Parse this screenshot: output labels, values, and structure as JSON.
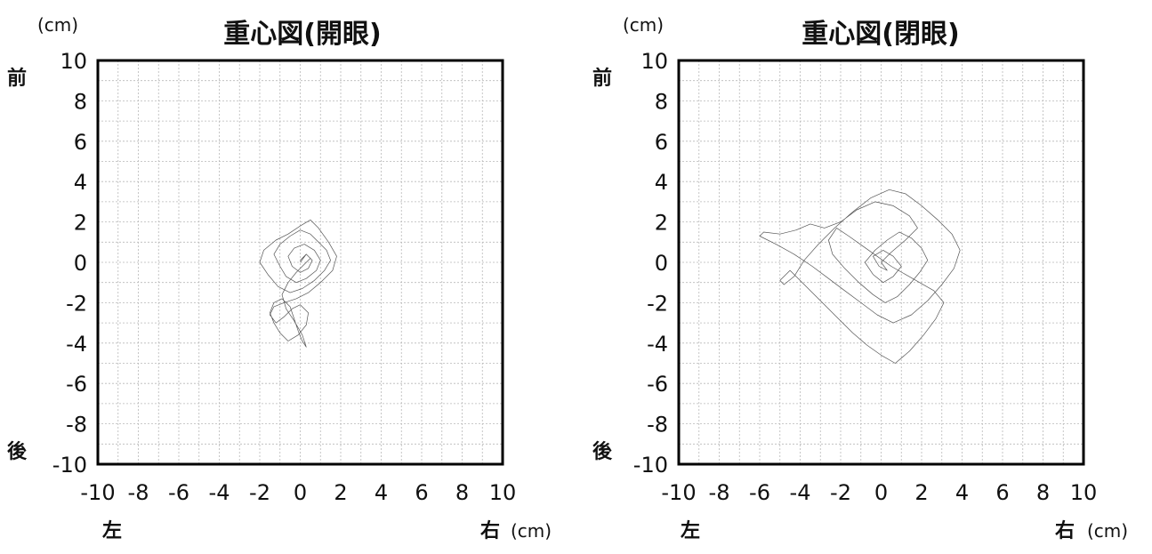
{
  "chart_data": [
    {
      "type": "line",
      "title": "重心図(開眼)",
      "y_unit": "(cm)",
      "x_unit": "(cm)",
      "front_label": "前",
      "back_label": "後",
      "left_label": "左",
      "right_label": "右",
      "xlim": [
        -10,
        10
      ],
      "ylim": [
        -10,
        10
      ],
      "x_ticks": [
        "-10",
        "-8",
        "-6",
        "-4",
        "-2",
        "0",
        "2",
        "4",
        "6",
        "8",
        "10"
      ],
      "y_ticks": [
        "10",
        "8",
        "6",
        "4",
        "2",
        "0",
        "-2",
        "-4",
        "-6",
        "-8",
        "-10"
      ],
      "grid": true,
      "series": [
        {
          "x": [
            0.0,
            0.3,
            0.6,
            0.4,
            0.0,
            -0.4,
            -0.6,
            -0.3,
            0.2,
            0.7,
            1.0,
            0.8,
            0.3,
            -0.2,
            -0.7,
            -1.0,
            -1.3,
            -1.0,
            -0.5,
            0.0,
            0.5,
            0.9,
            1.3,
            1.5,
            1.2,
            0.7,
            0.1,
            -0.5,
            -1.1,
            -1.6,
            -2.0,
            -1.8,
            -1.2,
            -0.6,
            0.0,
            0.5,
            0.9,
            1.4,
            1.8,
            1.6,
            1.0,
            0.4,
            -0.2,
            -0.8,
            -1.3,
            -1.5,
            -1.2,
            -0.8,
            -0.4,
            0.0,
            0.4,
            0.3,
            -0.1,
            -0.6,
            -1.0,
            -1.3,
            -1.5,
            -1.3,
            -0.9,
            -0.5,
            -0.3,
            -0.1,
            0.1,
            0.3,
            0.1,
            -0.3,
            -0.7,
            -0.9,
            -0.6,
            -0.2,
            0.2,
            0.5,
            0.3,
            0.0
          ],
          "y": [
            0.0,
            0.4,
            0.1,
            -0.3,
            -0.5,
            -0.2,
            0.3,
            0.7,
            0.9,
            0.6,
            0.1,
            -0.4,
            -0.8,
            -1.0,
            -0.7,
            -0.2,
            0.4,
            0.9,
            1.3,
            1.6,
            1.4,
            1.0,
            0.6,
            0.1,
            -0.4,
            -0.9,
            -1.3,
            -1.5,
            -1.2,
            -0.6,
            0.0,
            0.6,
            1.1,
            1.4,
            1.8,
            2.1,
            1.7,
            1.0,
            0.3,
            -0.4,
            -1.0,
            -1.5,
            -1.8,
            -2.0,
            -2.2,
            -2.6,
            -3.0,
            -2.7,
            -2.3,
            -2.1,
            -2.5,
            -3.1,
            -3.6,
            -3.9,
            -3.5,
            -3.0,
            -2.5,
            -2.0,
            -1.8,
            -2.2,
            -2.8,
            -3.4,
            -3.9,
            -4.2,
            -3.6,
            -2.9,
            -2.3,
            -1.6,
            -1.0,
            -0.5,
            -0.1,
            0.2,
            0.4,
            0.1
          ]
        }
      ]
    },
    {
      "type": "line",
      "title": "重心図(閉眼)",
      "y_unit": "(cm)",
      "x_unit": "(cm)",
      "front_label": "前",
      "back_label": "後",
      "left_label": "左",
      "right_label": "右",
      "xlim": [
        -10,
        10
      ],
      "ylim": [
        -10,
        10
      ],
      "x_ticks": [
        "-10",
        "-8",
        "-6",
        "-4",
        "-2",
        "0",
        "2",
        "4",
        "6",
        "8",
        "10"
      ],
      "y_ticks": [
        "10",
        "8",
        "6",
        "4",
        "2",
        "0",
        "-2",
        "-4",
        "-6",
        "-8",
        "-10"
      ],
      "grid": true,
      "series": [
        {
          "x": [
            0.0,
            0.5,
            1.2,
            1.8,
            1.4,
            0.6,
            -0.3,
            -1.2,
            -2.0,
            -2.8,
            -3.5,
            -4.2,
            -5.0,
            -5.8,
            -6.0,
            -5.2,
            -4.3,
            -3.4,
            -2.6,
            -1.8,
            -1.0,
            -0.2,
            0.6,
            1.5,
            2.3,
            3.0,
            3.6,
            3.9,
            3.5,
            2.8,
            2.0,
            1.2,
            0.4,
            -0.5,
            -1.4,
            -2.3,
            -3.1,
            -3.8,
            -4.3,
            -4.8,
            -5.0,
            -4.5,
            -3.7,
            -2.9,
            -2.1,
            -1.4,
            -0.7,
            0.0,
            0.7,
            1.4,
            2.1,
            2.7,
            3.1,
            2.6,
            1.9,
            1.2,
            0.5,
            -0.2,
            -0.9,
            -1.6,
            -2.2,
            -2.6,
            -2.4,
            -1.8,
            -1.1,
            -0.4,
            0.2,
            0.8,
            1.4,
            1.9,
            2.3,
            2.0,
            1.5,
            0.9,
            0.3,
            -0.3,
            -0.8,
            -0.4,
            0.1,
            0.6,
            1.0,
            0.6,
            0.1,
            -0.4,
            -0.1,
            0.3,
            0.0
          ],
          "y": [
            0.0,
            0.5,
            1.1,
            1.7,
            2.3,
            2.8,
            3.0,
            2.6,
            2.0,
            1.7,
            1.9,
            1.6,
            1.4,
            1.5,
            1.3,
            0.9,
            0.4,
            -0.2,
            -0.8,
            -1.4,
            -2.0,
            -2.6,
            -3.0,
            -2.6,
            -1.9,
            -1.1,
            -0.3,
            0.6,
            1.4,
            2.1,
            2.8,
            3.4,
            3.6,
            3.2,
            2.5,
            1.7,
            0.9,
            0.1,
            -0.7,
            -1.1,
            -0.9,
            -0.4,
            -1.2,
            -2.0,
            -2.8,
            -3.5,
            -4.1,
            -4.6,
            -5.0,
            -4.4,
            -3.6,
            -2.8,
            -2.0,
            -1.4,
            -1.0,
            -0.6,
            -0.2,
            0.3,
            0.8,
            1.3,
            1.7,
            1.1,
            0.4,
            -0.3,
            -1.0,
            -1.6,
            -2.0,
            -1.7,
            -1.1,
            -0.5,
            0.1,
            0.7,
            1.2,
            1.5,
            1.1,
            0.6,
            0.0,
            -0.6,
            -1.0,
            -0.7,
            -0.2,
            0.3,
            0.6,
            0.3,
            -0.2,
            -0.4,
            0.0
          ]
        }
      ]
    }
  ]
}
